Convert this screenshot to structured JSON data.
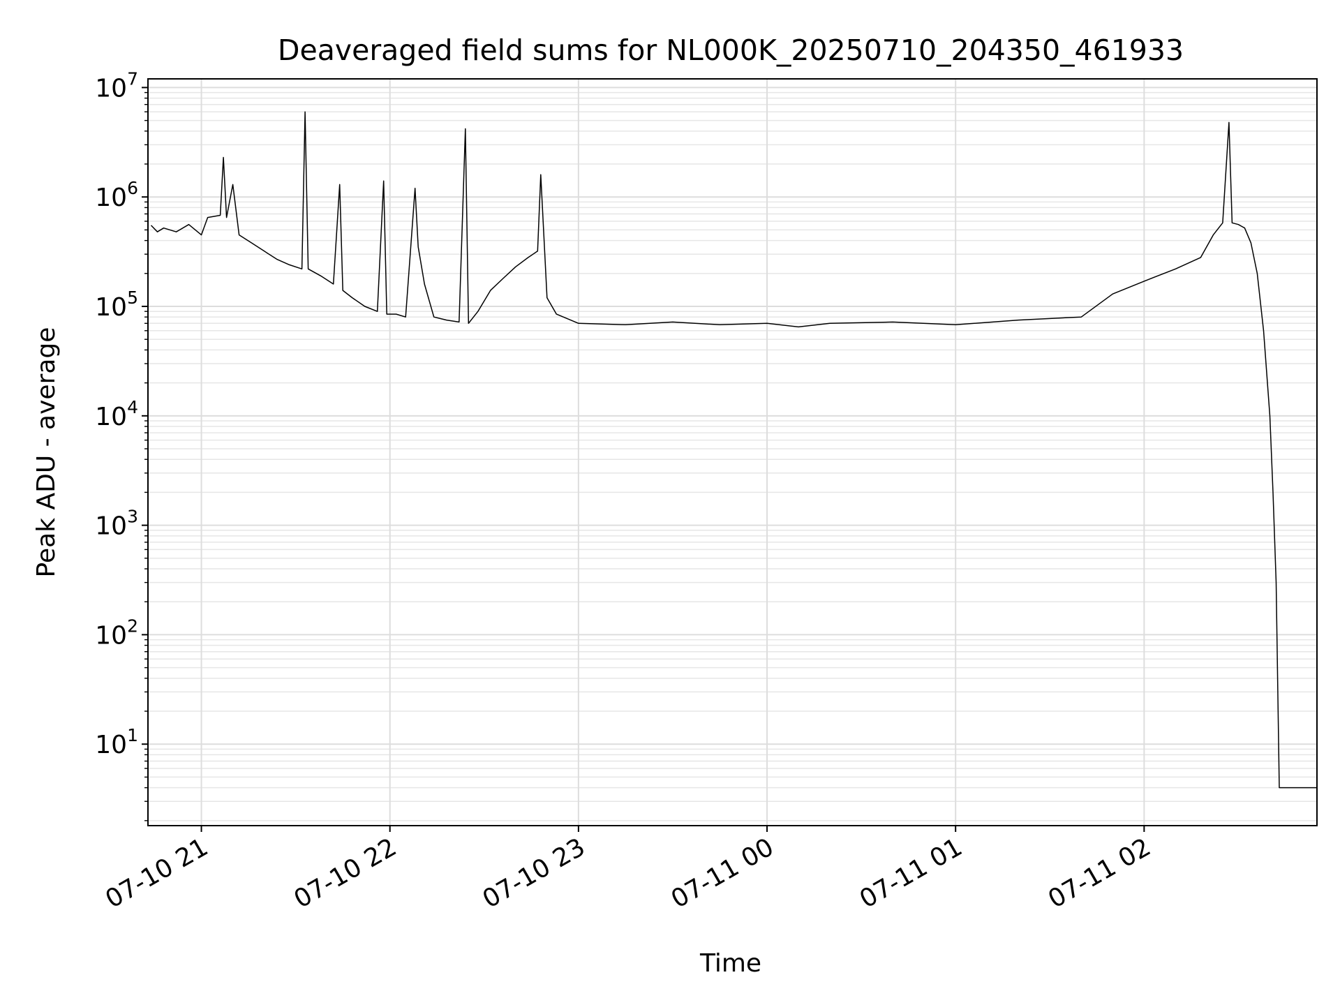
{
  "chart_data": {
    "type": "line",
    "title": "Deaveraged field sums for NL000K_20250710_204350_461933",
    "xlabel": "Time",
    "ylabel": "Peak ADU - average",
    "x_ticks": [
      "07-10 21",
      "07-10 22",
      "07-10 23",
      "07-11 00",
      "07-11 01",
      "07-11 02"
    ],
    "y_ticks": [
      {
        "base": "10",
        "exp": "1",
        "value": 10
      },
      {
        "base": "10",
        "exp": "2",
        "value": 100
      },
      {
        "base": "10",
        "exp": "3",
        "value": 1000
      },
      {
        "base": "10",
        "exp": "4",
        "value": 10000
      },
      {
        "base": "10",
        "exp": "5",
        "value": 100000
      },
      {
        "base": "10",
        "exp": "6",
        "value": 1000000
      },
      {
        "base": "10",
        "exp": "7",
        "value": 10000000
      }
    ],
    "y_scale": "log",
    "xlim": [
      "2025-07-10 20:43",
      "2025-07-11 02:55"
    ],
    "ylim": [
      1.8,
      12000000
    ],
    "grid": true,
    "line_color": "#000000",
    "series": [
      {
        "points": [
          [
            "2025-07-10 20:44",
            550000
          ],
          [
            "2025-07-10 20:46",
            480000
          ],
          [
            "2025-07-10 20:48",
            520000
          ],
          [
            "2025-07-10 20:52",
            480000
          ],
          [
            "2025-07-10 20:56",
            560000
          ],
          [
            "2025-07-10 21:00",
            450000
          ],
          [
            "2025-07-10 21:02",
            650000
          ],
          [
            "2025-07-10 21:06",
            680000
          ],
          [
            "2025-07-10 21:07",
            2300000
          ],
          [
            "2025-07-10 21:08",
            650000
          ],
          [
            "2025-07-10 21:10",
            1300000
          ],
          [
            "2025-07-10 21:12",
            450000
          ],
          [
            "2025-07-10 21:16",
            380000
          ],
          [
            "2025-07-10 21:20",
            320000
          ],
          [
            "2025-07-10 21:24",
            270000
          ],
          [
            "2025-07-10 21:28",
            240000
          ],
          [
            "2025-07-10 21:32",
            220000
          ],
          [
            "2025-07-10 21:33",
            6000000
          ],
          [
            "2025-07-10 21:34",
            220000
          ],
          [
            "2025-07-10 21:38",
            190000
          ],
          [
            "2025-07-10 21:42",
            160000
          ],
          [
            "2025-07-10 21:44",
            1300000
          ],
          [
            "2025-07-10 21:45",
            140000
          ],
          [
            "2025-07-10 21:48",
            120000
          ],
          [
            "2025-07-10 21:52",
            100000
          ],
          [
            "2025-07-10 21:56",
            90000
          ],
          [
            "2025-07-10 21:58",
            1400000
          ],
          [
            "2025-07-10 21:59",
            85000
          ],
          [
            "2025-07-10 22:02",
            85000
          ],
          [
            "2025-07-10 22:05",
            80000
          ],
          [
            "2025-07-10 22:08",
            1200000
          ],
          [
            "2025-07-10 22:09",
            350000
          ],
          [
            "2025-07-10 22:11",
            160000
          ],
          [
            "2025-07-10 22:14",
            80000
          ],
          [
            "2025-07-10 22:18",
            75000
          ],
          [
            "2025-07-10 22:22",
            72000
          ],
          [
            "2025-07-10 22:24",
            4200000
          ],
          [
            "2025-07-10 22:25",
            70000
          ],
          [
            "2025-07-10 22:28",
            90000
          ],
          [
            "2025-07-10 22:32",
            140000
          ],
          [
            "2025-07-10 22:36",
            180000
          ],
          [
            "2025-07-10 22:40",
            230000
          ],
          [
            "2025-07-10 22:44",
            280000
          ],
          [
            "2025-07-10 22:47",
            320000
          ],
          [
            "2025-07-10 22:48",
            1600000
          ],
          [
            "2025-07-10 22:50",
            120000
          ],
          [
            "2025-07-10 22:53",
            85000
          ],
          [
            "2025-07-10 23:00",
            70000
          ],
          [
            "2025-07-10 23:15",
            68000
          ],
          [
            "2025-07-10 23:30",
            72000
          ],
          [
            "2025-07-10 23:45",
            68000
          ],
          [
            "2025-07-11 00:00",
            70000
          ],
          [
            "2025-07-11 00:10",
            65000
          ],
          [
            "2025-07-11 00:20",
            70000
          ],
          [
            "2025-07-11 00:40",
            72000
          ],
          [
            "2025-07-11 01:00",
            68000
          ],
          [
            "2025-07-11 01:20",
            75000
          ],
          [
            "2025-07-11 01:40",
            80000
          ],
          [
            "2025-07-11 01:50",
            130000
          ],
          [
            "2025-07-11 02:00",
            170000
          ],
          [
            "2025-07-11 02:10",
            220000
          ],
          [
            "2025-07-11 02:18",
            280000
          ],
          [
            "2025-07-11 02:22",
            450000
          ],
          [
            "2025-07-11 02:25",
            580000
          ],
          [
            "2025-07-11 02:27",
            4800000
          ],
          [
            "2025-07-11 02:28",
            580000
          ],
          [
            "2025-07-11 02:30",
            560000
          ],
          [
            "2025-07-11 02:32",
            520000
          ],
          [
            "2025-07-11 02:34",
            380000
          ],
          [
            "2025-07-11 02:36",
            200000
          ],
          [
            "2025-07-11 02:38",
            60000
          ],
          [
            "2025-07-11 02:40",
            10000
          ],
          [
            "2025-07-11 02:41",
            2000
          ],
          [
            "2025-07-11 02:42",
            300
          ],
          [
            "2025-07-11 02:43",
            4
          ],
          [
            "2025-07-11 02:55",
            4
          ]
        ]
      }
    ]
  }
}
